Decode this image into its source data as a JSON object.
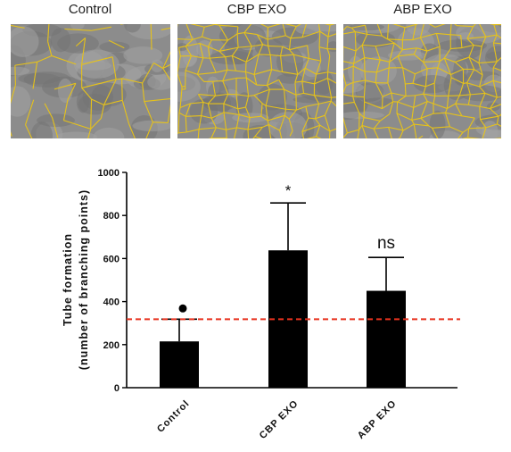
{
  "panels": [
    {
      "label": "Control",
      "density": "low"
    },
    {
      "label": "CBP EXO",
      "density": "high"
    },
    {
      "label": "ABP EXO",
      "density": "high"
    }
  ],
  "colors": {
    "bar": "#000000",
    "reference_line": "#e8321e",
    "mesh": "#e6c21a",
    "marker": "#000000"
  },
  "chart_data": {
    "type": "bar",
    "categories": [
      "Control",
      "CBP EXO",
      "ABP EXO"
    ],
    "values": [
      215,
      638,
      450
    ],
    "error_upper": [
      318,
      858,
      605
    ],
    "annotations": [
      "",
      "*",
      "ns"
    ],
    "ylabel_line1": "Tube formation",
    "ylabel_line2": "(number of branching points)",
    "ylim": [
      0,
      1000
    ],
    "yticks": [
      "0",
      "200",
      "400",
      "600",
      "800",
      "1000"
    ],
    "reference_line_y": 318,
    "control_marker_y": 368,
    "grid": false
  }
}
